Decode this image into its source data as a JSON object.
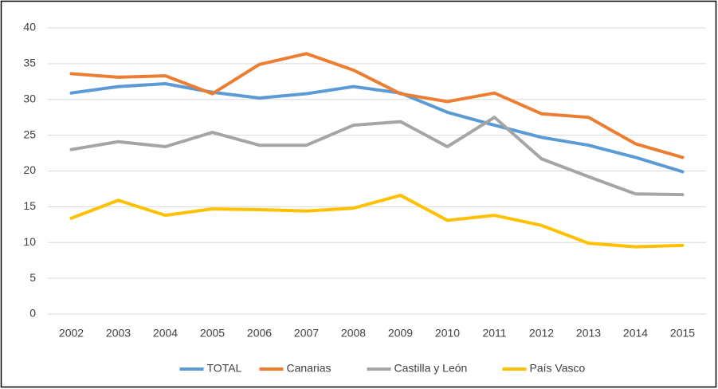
{
  "chart_data": {
    "type": "line",
    "categories": [
      "2002",
      "2003",
      "2004",
      "2005",
      "2006",
      "2007",
      "2008",
      "2009",
      "2010",
      "2011",
      "2012",
      "2013",
      "2014",
      "2015"
    ],
    "series": [
      {
        "name": "TOTAL",
        "color": "#5b9bd5",
        "values": [
          30.9,
          31.8,
          32.2,
          31.0,
          30.2,
          30.8,
          31.8,
          30.9,
          28.2,
          26.4,
          24.7,
          23.6,
          21.9,
          19.9
        ]
      },
      {
        "name": "Canarias",
        "color": "#ed7d31",
        "values": [
          33.6,
          33.1,
          33.3,
          30.8,
          34.9,
          36.4,
          34.1,
          30.8,
          29.7,
          30.9,
          28.0,
          27.5,
          23.8,
          21.9
        ]
      },
      {
        "name": "Castilla y León",
        "color": "#a5a5a5",
        "values": [
          23.0,
          24.1,
          23.4,
          25.4,
          23.6,
          23.6,
          26.4,
          26.9,
          23.4,
          27.5,
          21.7,
          19.2,
          16.8,
          16.7
        ]
      },
      {
        "name": "País Vasco",
        "color": "#ffc000",
        "values": [
          13.4,
          15.9,
          13.8,
          14.7,
          14.6,
          14.4,
          14.8,
          16.6,
          13.1,
          13.8,
          12.4,
          9.9,
          9.4,
          9.6
        ]
      }
    ],
    "ylim": [
      0,
      40
    ],
    "yticks": [
      0,
      5,
      10,
      15,
      20,
      25,
      30,
      35,
      40
    ],
    "grid": true,
    "legend": "bottom"
  }
}
